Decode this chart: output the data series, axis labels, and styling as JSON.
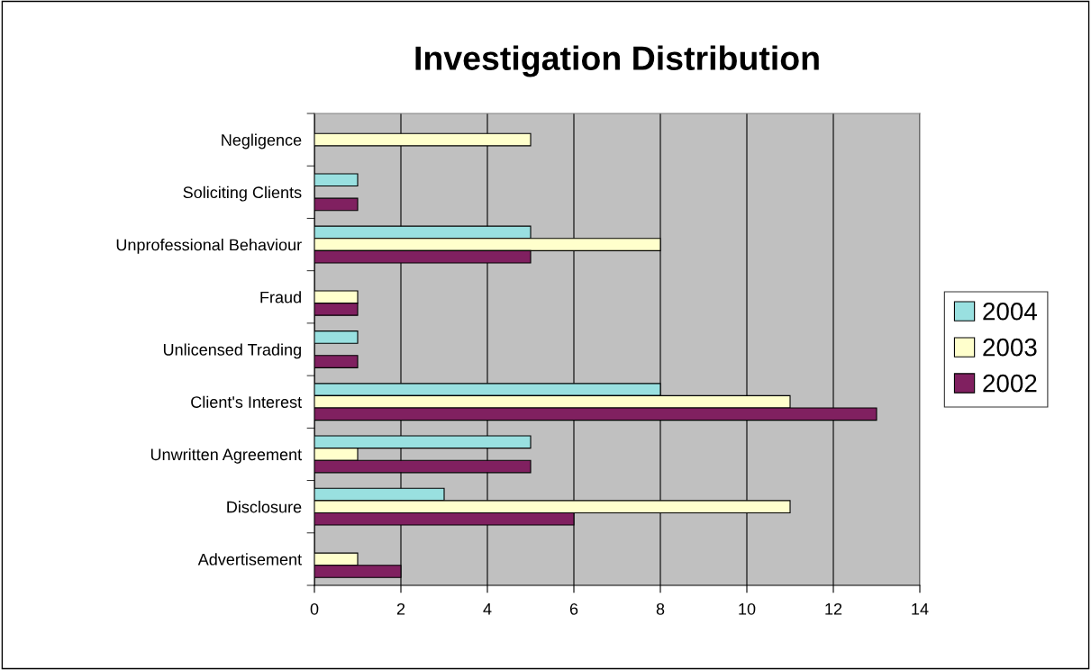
{
  "chart_data": {
    "type": "bar",
    "orientation": "horizontal",
    "title": "Investigation Distribution",
    "categories": [
      "Negligence",
      "Soliciting Clients",
      "Unprofessional Behaviour",
      "Fraud",
      "Unlicensed Trading",
      "Client's Interest",
      "Unwritten Agreement",
      "Disclosure",
      "Advertisement"
    ],
    "series": [
      {
        "name": "2004",
        "color": "#99e0e0",
        "values": [
          null,
          1,
          5,
          null,
          1,
          8,
          5,
          3,
          null
        ]
      },
      {
        "name": "2003",
        "color": "#ffffcc",
        "values": [
          5,
          null,
          8,
          1,
          null,
          11,
          1,
          11,
          1
        ]
      },
      {
        "name": "2002",
        "color": "#802060",
        "values": [
          null,
          1,
          5,
          1,
          1,
          13,
          5,
          6,
          2
        ]
      }
    ],
    "xlim": [
      0,
      14
    ],
    "xticks": [
      0,
      2,
      4,
      6,
      8,
      10,
      12,
      14
    ],
    "grid": "x",
    "legend": "right"
  }
}
